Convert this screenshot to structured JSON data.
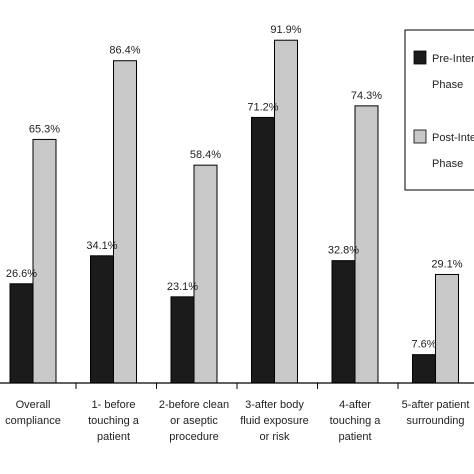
{
  "chart_data": {
    "type": "bar",
    "categories": [
      [
        "Overall",
        "compliance"
      ],
      [
        "1- before",
        "touching a",
        "patient"
      ],
      [
        "2-before clean",
        "or aseptic",
        "procedure"
      ],
      [
        "3-after body",
        "fluid exposure",
        "or risk"
      ],
      [
        "4-after",
        "touching a",
        "patient"
      ],
      [
        "5-after patient",
        "surrounding"
      ]
    ],
    "series": [
      {
        "name": "Pre-Intervention Phase",
        "legend_lines": [
          "Pre-Inter",
          "Phase"
        ],
        "values": [
          26.6,
          34.1,
          23.1,
          71.2,
          32.8,
          7.6
        ],
        "labels": [
          "26.6%",
          "34.1%",
          "23.1%",
          "71.2%",
          "32.8%",
          "7.6%"
        ],
        "color": "#1b1b1b"
      },
      {
        "name": "Post-Intervention Phase",
        "legend_lines": [
          "Post-Inte",
          "Phase"
        ],
        "values": [
          65.3,
          86.4,
          58.4,
          91.9,
          74.3,
          29.1
        ],
        "labels": [
          "65.3%",
          "86.4%",
          "58.4%",
          "91.9%",
          "74.3%",
          "29.1%"
        ],
        "color": "#c8c8c8"
      }
    ],
    "ylim": [
      0,
      100
    ],
    "grid": false,
    "legend": "top-right"
  }
}
